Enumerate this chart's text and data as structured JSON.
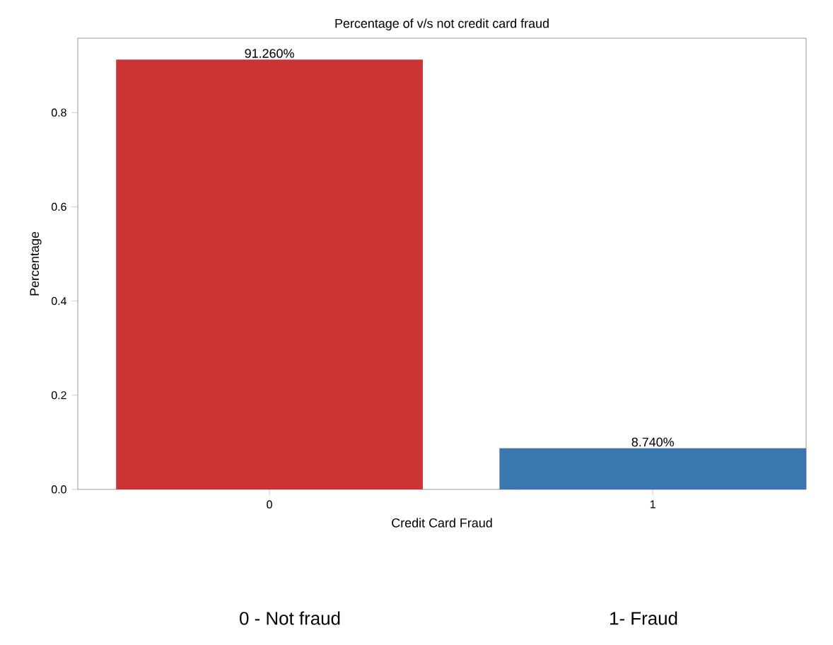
{
  "chart_data": {
    "type": "bar",
    "title": "Percentage of v/s not credit card fraud",
    "xlabel": "Credit Card Fraud",
    "ylabel": "Percentage",
    "categories": [
      "0",
      "1"
    ],
    "values": [
      0.9126,
      0.0874
    ],
    "colors": [
      "#cc3333",
      "#3a76b0"
    ],
    "value_labels": [
      "91.260%",
      "8.740%"
    ],
    "ylim": [
      0,
      0.958
    ],
    "yticks": [
      {
        "value": 0,
        "label": "0.0"
      },
      {
        "value": 0.2,
        "label": "0.2"
      },
      {
        "value": 0.4,
        "label": "0.4"
      },
      {
        "value": 0.6,
        "label": "0.6"
      },
      {
        "value": 0.8,
        "label": "0.8"
      }
    ],
    "annotations": [
      "0 - Not fraud",
      "1- Fraud"
    ]
  }
}
